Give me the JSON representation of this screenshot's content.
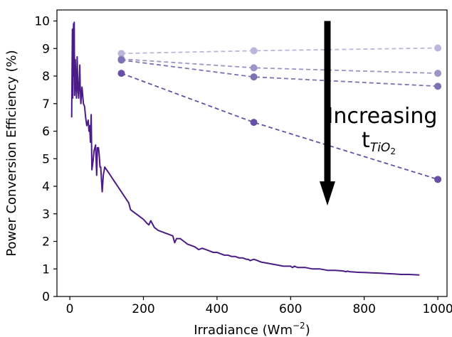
{
  "chart_data": {
    "type": "line",
    "title": "",
    "xlabel": "Irradiance (Wm",
    "xlabel_sup": "−2",
    "xlabel_close": ")",
    "ylabel": "Power Conversion Efficiency (%)",
    "xlim": [
      -35,
      1025
    ],
    "ylim": [
      0,
      10.4
    ],
    "x_ticks": [
      0,
      200,
      400,
      600,
      800,
      1000
    ],
    "x_tick_labels": [
      "0",
      "200",
      "400",
      "600",
      "800",
      "1000"
    ],
    "y_ticks": [
      0,
      1,
      2,
      3,
      4,
      5,
      6,
      7,
      8,
      9,
      10
    ],
    "y_tick_labels": [
      "0",
      "1",
      "2",
      "3",
      "4",
      "5",
      "6",
      "7",
      "8",
      "9",
      "10"
    ],
    "grid": false,
    "series": [
      {
        "style": "solid",
        "color": "#4b1c85",
        "x": [
          5,
          7,
          8,
          10,
          11,
          12,
          13,
          15,
          16,
          17,
          18,
          20,
          22,
          24,
          27,
          28,
          30,
          33,
          35,
          37,
          40,
          43,
          46,
          50,
          52,
          54,
          56,
          58,
          60,
          63,
          66,
          70,
          73,
          75,
          78,
          80,
          82,
          84,
          86,
          88,
          91,
          95,
          100,
          105,
          110,
          120,
          130,
          140,
          150,
          160,
          165,
          170,
          180,
          190,
          200,
          210,
          215,
          220,
          230,
          240,
          250,
          260,
          270,
          280,
          285,
          290,
          300,
          310,
          320,
          330,
          340,
          345,
          350,
          360,
          370,
          380,
          390,
          400,
          410,
          420,
          430,
          440,
          450,
          460,
          470,
          480,
          485,
          490,
          500,
          510,
          520,
          540,
          560,
          580,
          600,
          605,
          610,
          620,
          640,
          660,
          680,
          700,
          720,
          740,
          745,
          750,
          755,
          760,
          780,
          800,
          820,
          840,
          860,
          880,
          900,
          920,
          950
        ],
        "y": [
          6.5,
          9.7,
          7.2,
          9.9,
          8.0,
          9.95,
          7.3,
          8.6,
          7.8,
          7.6,
          7.2,
          8.7,
          7.5,
          7.2,
          8.4,
          7.7,
          7.0,
          7.6,
          7.3,
          7.0,
          6.9,
          6.5,
          6.2,
          6.4,
          6.0,
          6.2,
          5.6,
          6.6,
          4.6,
          4.9,
          5.3,
          5.5,
          4.4,
          5.4,
          5.4,
          5.1,
          4.7,
          4.7,
          4.2,
          3.8,
          4.4,
          4.7,
          4.6,
          4.5,
          4.4,
          4.2,
          4.0,
          3.8,
          3.6,
          3.4,
          3.15,
          3.1,
          3.0,
          2.9,
          2.8,
          2.65,
          2.6,
          2.75,
          2.5,
          2.4,
          2.35,
          2.3,
          2.25,
          2.2,
          1.95,
          2.1,
          2.1,
          2.0,
          1.9,
          1.85,
          1.8,
          1.75,
          1.7,
          1.75,
          1.7,
          1.65,
          1.6,
          1.6,
          1.55,
          1.5,
          1.5,
          1.45,
          1.45,
          1.4,
          1.4,
          1.35,
          1.35,
          1.3,
          1.35,
          1.3,
          1.25,
          1.2,
          1.15,
          1.1,
          1.1,
          1.05,
          1.1,
          1.05,
          1.05,
          1.0,
          1.0,
          0.95,
          0.95,
          0.93,
          0.92,
          0.9,
          0.92,
          0.9,
          0.88,
          0.87,
          0.86,
          0.85,
          0.83,
          0.82,
          0.8,
          0.8,
          0.78
        ]
      },
      {
        "style": "dashed",
        "color": "#bcb6da",
        "x": [
          140,
          500,
          1000
        ],
        "y": [
          8.82,
          8.92,
          9.02
        ]
      },
      {
        "style": "dashed",
        "color": "#9f94c8",
        "x": [
          140,
          500,
          1000
        ],
        "y": [
          8.62,
          8.3,
          8.1
        ]
      },
      {
        "style": "dashed",
        "color": "#7f72b3",
        "x": [
          140,
          500,
          1000
        ],
        "y": [
          8.58,
          7.97,
          7.63
        ]
      },
      {
        "style": "dashed",
        "color": "#6651a5",
        "x": [
          140,
          500,
          1000
        ],
        "y": [
          8.1,
          6.32,
          4.25
        ]
      }
    ],
    "annotations": [
      {
        "text": "Increasing",
        "sub_base": "t",
        "sub_text": "TiO",
        "sub_sub": "2"
      }
    ],
    "arrow": {
      "x": 700,
      "y_start": 10.0,
      "y_end": 3.3
    }
  }
}
